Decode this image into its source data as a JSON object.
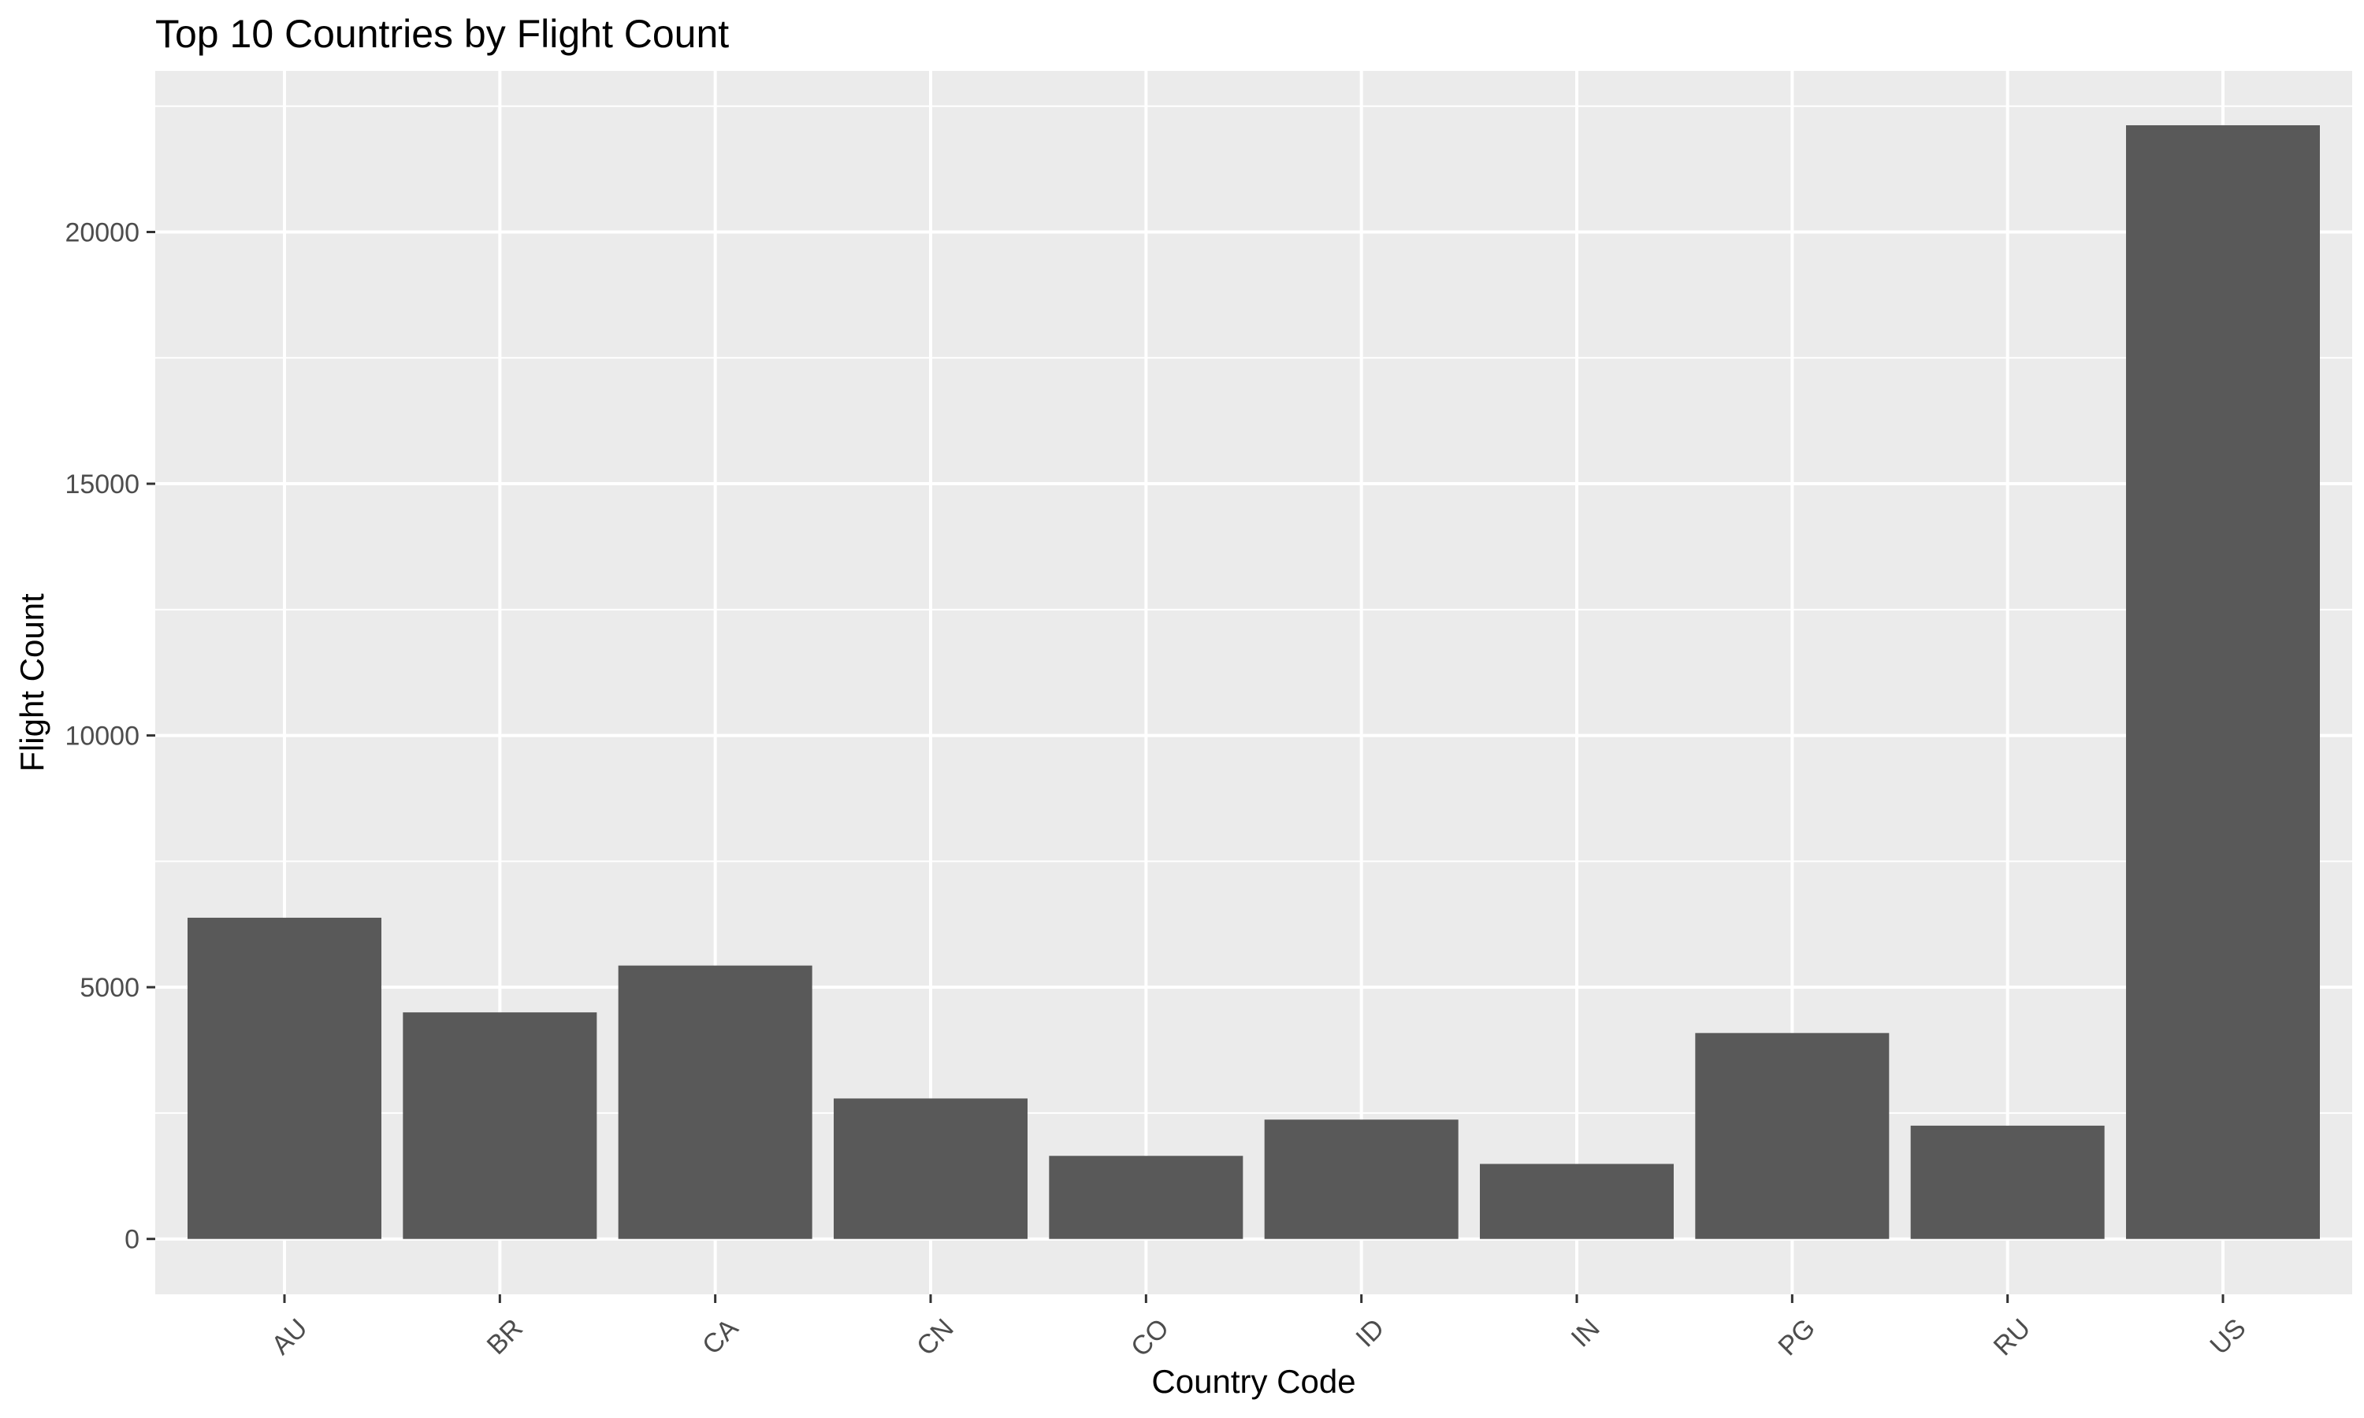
{
  "chart_data": {
    "type": "bar",
    "title": "Top 10 Countries by Flight Count",
    "xlabel": "Country Code",
    "ylabel": "Flight Count",
    "categories": [
      "AU",
      "BR",
      "CA",
      "CN",
      "CO",
      "ID",
      "IN",
      "PG",
      "RU",
      "US"
    ],
    "values": [
      6380,
      4500,
      5430,
      2790,
      1650,
      2370,
      1490,
      4090,
      2250,
      22120
    ],
    "ylim": [
      -1100,
      23200
    ],
    "yticks": [
      0,
      5000,
      10000,
      15000,
      20000
    ],
    "ytick_labels": [
      "0",
      "5000",
      "10000",
      "15000",
      "20000"
    ],
    "grid": true,
    "legend": "none",
    "colors": {
      "bar": "#595959",
      "panel": "#ebebeb",
      "grid": "#ffffff",
      "tick_text": "#4d4d4d",
      "tick_mark": "#333333"
    }
  }
}
